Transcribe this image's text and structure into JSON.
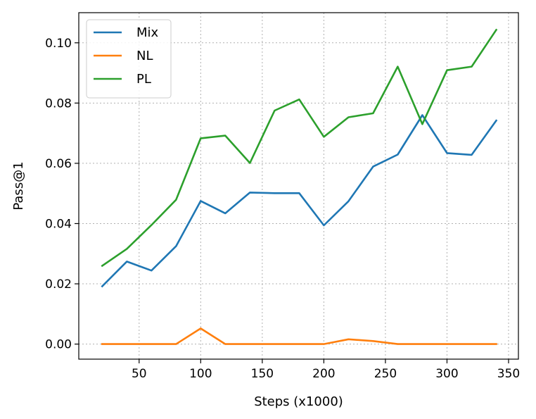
{
  "chart_data": {
    "type": "line",
    "xlabel": "Steps (x1000)",
    "ylabel": "Pass@1",
    "xlim": [
      1,
      358
    ],
    "ylim": [
      -0.005,
      0.11
    ],
    "xticks": [
      50,
      100,
      150,
      200,
      250,
      300,
      350
    ],
    "xtick_labels": [
      "50",
      "100",
      "150",
      "200",
      "250",
      "300",
      "350"
    ],
    "yticks": [
      0.0,
      0.02,
      0.04,
      0.06,
      0.08,
      0.1
    ],
    "ytick_labels": [
      "0.00",
      "0.02",
      "0.04",
      "0.06",
      "0.08",
      "0.10"
    ],
    "grid": true,
    "legend_position": "top-left",
    "x": [
      20,
      40,
      60,
      80,
      100,
      120,
      140,
      160,
      180,
      200,
      220,
      240,
      260,
      280,
      300,
      320,
      340
    ],
    "series": [
      {
        "name": "Mix",
        "color": "#1f77b4",
        "values": [
          0.0192,
          0.0274,
          0.0244,
          0.0325,
          0.0475,
          0.0434,
          0.0503,
          0.0501,
          0.0501,
          0.0394,
          0.0474,
          0.0589,
          0.0629,
          0.076,
          0.0634,
          0.0628,
          0.0742
        ]
      },
      {
        "name": "NL",
        "color": "#ff7f0e",
        "values": [
          0.0,
          0.0,
          0.0,
          0.0,
          0.0052,
          0.0,
          0.0,
          0.0,
          0.0,
          0.0,
          0.0016,
          0.001,
          0.0,
          0.0,
          0.0,
          0.0,
          0.0
        ]
      },
      {
        "name": "PL",
        "color": "#2ca02c",
        "values": [
          0.026,
          0.0316,
          0.0395,
          0.0479,
          0.0683,
          0.0692,
          0.0601,
          0.0775,
          0.0812,
          0.0688,
          0.0753,
          0.0766,
          0.0921,
          0.073,
          0.0909,
          0.0921,
          0.1043
        ]
      }
    ]
  }
}
